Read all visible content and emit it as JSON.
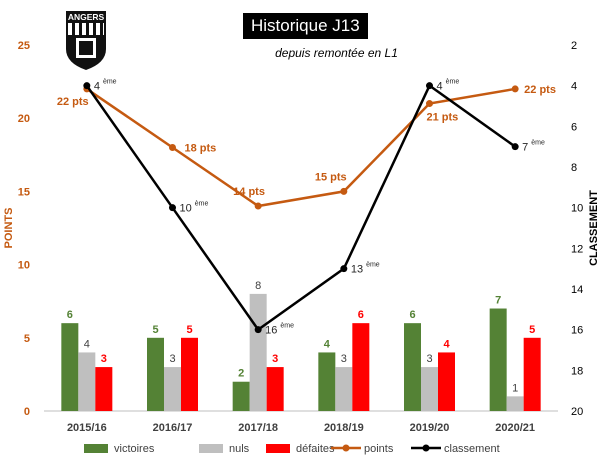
{
  "header": {
    "title": "Historique J13",
    "subtitle": "depuis remontée en L1",
    "logo_text": "ANGERS"
  },
  "chart_data": {
    "type": "bar+line",
    "categories": [
      "2015/16",
      "2016/17",
      "2017/18",
      "2018/19",
      "2019/20",
      "2020/21"
    ],
    "bars": [
      {
        "name": "victoires",
        "color": "#548235",
        "values": [
          6,
          5,
          2,
          4,
          6,
          7
        ]
      },
      {
        "name": "nuls",
        "color": "#bfbfbf",
        "values": [
          4,
          3,
          8,
          3,
          3,
          1
        ]
      },
      {
        "name": "défaites",
        "color": "#ff0000",
        "values": [
          3,
          5,
          3,
          6,
          4,
          5
        ]
      }
    ],
    "points": {
      "name": "points",
      "color": "#c55a11",
      "values": [
        22,
        18,
        14,
        15,
        21,
        22
      ],
      "labels": [
        "22 pts",
        "18 pts",
        "14 pts",
        "15 pts",
        "21 pts",
        "22 pts"
      ]
    },
    "classement": {
      "name": "classement",
      "color": "#000000",
      "values": [
        4,
        10,
        16,
        13,
        4,
        7
      ],
      "labels": [
        "4",
        "10",
        "16",
        "13",
        "4",
        "7"
      ],
      "suffix": "ème"
    },
    "ylabel": "POINTS",
    "ylim": [
      0,
      25
    ],
    "yticks": [
      "0",
      "5",
      "10",
      "15",
      "20",
      "25"
    ],
    "y2label": "CLASSEMENT",
    "y2lim": [
      2,
      20
    ],
    "y2ticks": [
      "2",
      "4",
      "6",
      "8",
      "10",
      "12",
      "14",
      "16",
      "18",
      "20"
    ],
    "legend": [
      "victoires",
      "nuls",
      "défaites",
      "points",
      "classement"
    ],
    "legend_position": "bottom"
  }
}
